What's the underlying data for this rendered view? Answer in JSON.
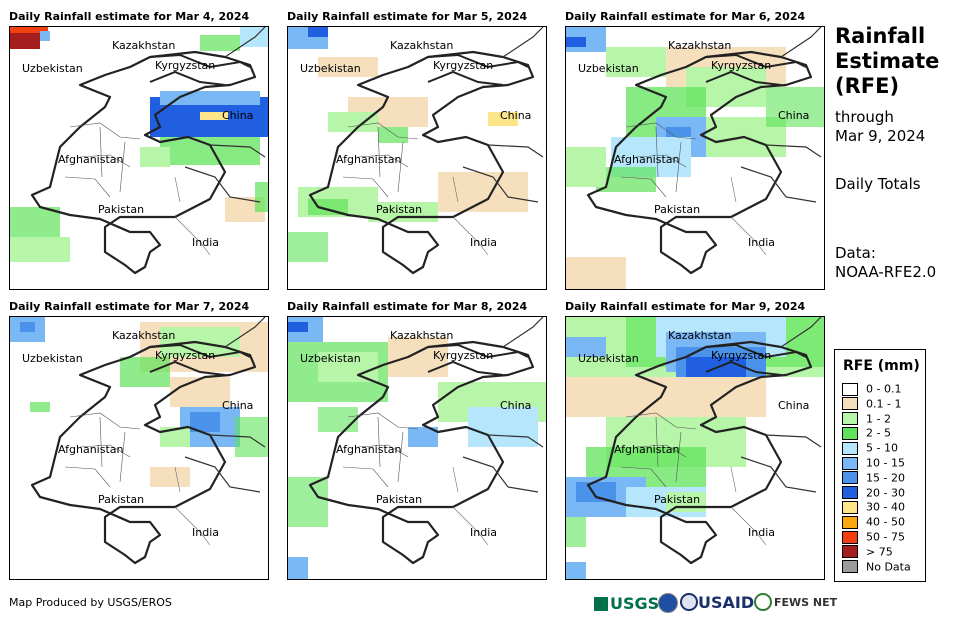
{
  "panels": [
    {
      "title": "Daily Rainfall estimate for Mar 4, 2024"
    },
    {
      "title": "Daily Rainfall estimate for Mar 5, 2024"
    },
    {
      "title": "Daily Rainfall estimate for Mar 6, 2024"
    },
    {
      "title": "Daily Rainfall estimate for Mar 7, 2024"
    },
    {
      "title": "Daily Rainfall estimate for Mar 8, 2024"
    },
    {
      "title": "Daily Rainfall estimate for Mar 9, 2024"
    }
  ],
  "map_labels": {
    "kazakhstan": "Kazakhstan",
    "uzbekistan": "Uzbekistan",
    "kyrgyzstan": "Kyrgyzstan",
    "china": "China",
    "afghanistan": "Afghanistan",
    "pakistan": "Pakistan",
    "india": "India"
  },
  "side": {
    "title_line1": "Rainfall",
    "title_line2": "Estimate",
    "title_line3": "(RFE)",
    "through": "through",
    "date": "Mar 9, 2024",
    "totals": "Daily Totals",
    "data_label": "Data:",
    "data_source": "NOAA-RFE2.0"
  },
  "legend": {
    "title": "RFE (mm)",
    "items": [
      {
        "label": "0 - 0.1",
        "color": "#ffffff"
      },
      {
        "label": "0.1 - 1",
        "color": "#f5dfbd"
      },
      {
        "label": "1 - 2",
        "color": "#b7f5a8"
      },
      {
        "label": "2 - 5",
        "color": "#5fe35a"
      },
      {
        "label": "5 - 10",
        "color": "#b5e6fb"
      },
      {
        "label": "10 - 15",
        "color": "#79b8f4"
      },
      {
        "label": "15 - 20",
        "color": "#4b93ea"
      },
      {
        "label": "20 - 30",
        "color": "#1f5fe0"
      },
      {
        "label": "30 - 40",
        "color": "#fde68a"
      },
      {
        "label": "40 - 50",
        "color": "#fba70f"
      },
      {
        "label": "50 - 75",
        "color": "#f2400e"
      },
      {
        "label": "> 75",
        "color": "#a61d1d"
      },
      {
        "label": "No Data",
        "color": "#9b9b9b"
      }
    ]
  },
  "footer": {
    "credit": "Map Produced by USGS/EROS"
  },
  "logos": {
    "usgs": "USGS",
    "usaid": "USAID",
    "fewsnet": "FEWS NET"
  }
}
